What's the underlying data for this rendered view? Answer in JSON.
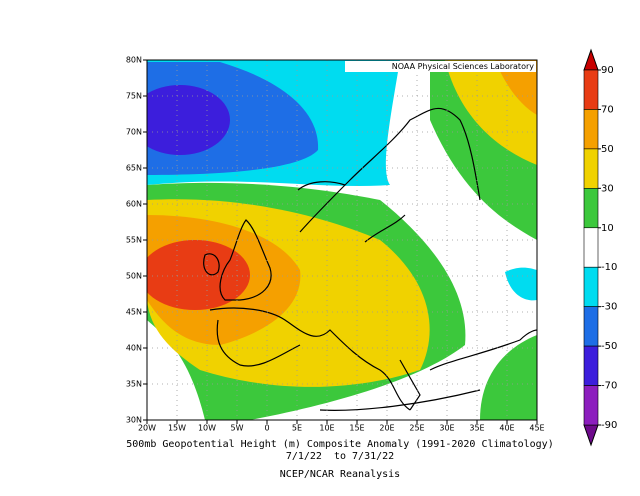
{
  "map": {
    "credit": "NOAA Physical Sciences Laboratory",
    "lat_labels": [
      "80N",
      "75N",
      "70N",
      "65N",
      "60N",
      "55N",
      "50N",
      "45N",
      "40N",
      "35N",
      "30N"
    ],
    "lon_labels": [
      "20W",
      "15W",
      "10W",
      "5W",
      "0",
      "5E",
      "10E",
      "15E",
      "20E",
      "25E",
      "30E",
      "35E",
      "40E",
      "45E"
    ]
  },
  "colorbar": {
    "levels": [
      90,
      70,
      50,
      30,
      10,
      -10,
      -30,
      -50,
      -70,
      -90
    ],
    "colors": [
      "#c80000",
      "#e83c14",
      "#f5a000",
      "#f0d200",
      "#3cc83c",
      "#ffffff",
      "#00dcf0",
      "#1e6ee6",
      "#3c1edc",
      "#8c1ebe",
      "#6e0a8c"
    ]
  },
  "caption": {
    "title": "500mb Geopotential Height (m) Composite Anomaly (1991-2020 Climatology)",
    "dates": "7/1/22  to 7/31/22",
    "source": "NCEP/NCAR Reanalysis"
  }
}
